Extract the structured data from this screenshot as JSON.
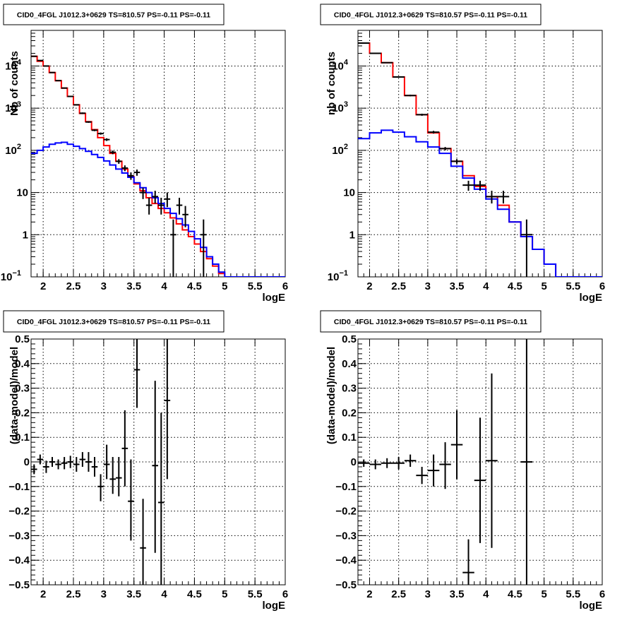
{
  "colors": {
    "total_model": "#ff0000",
    "source_model": "#0000ff",
    "data": "#000000"
  },
  "chart_data": [
    {
      "type": "line",
      "title": "CID0_4FGL J1012.3+0629 TS=810.57 PS=-0.11 PS=-0.11",
      "xlabel": "logE",
      "ylabel": "Nb of counts",
      "xlim": [
        1.8,
        6.0
      ],
      "ylim": [
        0.1,
        70000
      ],
      "yscale": "log",
      "grid": true,
      "x_ticks": [
        "2",
        "2.5",
        "3",
        "3.5",
        "4",
        "4.5",
        "5",
        "5.5",
        "6"
      ],
      "y_ticks": [
        {
          "v": 0.1,
          "base": "10",
          "exp": "−1"
        },
        {
          "v": 1,
          "label": "1"
        },
        {
          "v": 10,
          "label": "10"
        },
        {
          "v": 100,
          "base": "10",
          "exp": "2"
        },
        {
          "v": 1000,
          "base": "10",
          "exp": "3"
        },
        {
          "v": 10000,
          "base": "10",
          "exp": "4"
        }
      ],
      "bin_edges": [
        1.8,
        1.9,
        2.0,
        2.1,
        2.2,
        2.3,
        2.4,
        2.5,
        2.6,
        2.7,
        2.8,
        2.9,
        3.0,
        3.1,
        3.2,
        3.3,
        3.4,
        3.5,
        3.6,
        3.7,
        3.8,
        3.9,
        4.0,
        4.1,
        4.2,
        4.3,
        4.4,
        4.5,
        4.6,
        4.7,
        4.8,
        4.9,
        5.0,
        5.1,
        5.2,
        5.3,
        5.4,
        5.5,
        5.6,
        5.7,
        5.8,
        5.9,
        6.0
      ],
      "series": [
        {
          "name": "",
          "color": "#ff0000",
          "style": "step",
          "values": [
            17000,
            13000,
            10000,
            7000,
            4500,
            3000,
            1900,
            1200,
            750,
            480,
            310,
            200,
            130,
            85,
            55,
            36,
            24,
            16,
            11,
            7.5,
            5.5,
            4.2,
            3.3,
            2.5,
            1.8,
            1.3,
            0.9,
            0.6,
            0.4,
            0.27,
            0.18,
            0.12,
            0.1,
            0.1,
            0.1,
            0.1,
            0.1,
            0.1,
            0.1,
            0.1,
            0.1,
            0.1
          ]
        },
        {
          "name": "",
          "color": "#0000ff",
          "style": "step",
          "values": [
            85,
            100,
            120,
            140,
            150,
            155,
            140,
            125,
            110,
            95,
            80,
            68,
            56,
            45,
            36,
            29,
            23,
            17,
            13,
            10,
            7.5,
            5.5,
            4.2,
            3.2,
            2.4,
            1.7,
            1.2,
            0.8,
            0.5,
            0.3,
            0.2,
            0.13,
            0.1,
            0.1,
            0.1,
            0.1,
            0.1,
            0.1,
            0.1,
            0.1,
            0.1,
            0.1
          ]
        },
        {
          "name": "",
          "color": "#000000",
          "style": "errorbar",
          "points": [
            {
              "x": 1.85,
              "y": 17000,
              "lo": 16800,
              "hi": 17200
            },
            {
              "x": 1.95,
              "y": 13500,
              "lo": 13300,
              "hi": 13700
            },
            {
              "x": 2.05,
              "y": 10000,
              "lo": 9850,
              "hi": 10150
            },
            {
              "x": 2.15,
              "y": 7000,
              "lo": 6850,
              "hi": 7150
            },
            {
              "x": 2.25,
              "y": 4500,
              "lo": 4400,
              "hi": 4600
            },
            {
              "x": 2.35,
              "y": 3000,
              "lo": 2930,
              "hi": 3070
            },
            {
              "x": 2.45,
              "y": 1900,
              "lo": 1850,
              "hi": 1950
            },
            {
              "x": 2.55,
              "y": 1200,
              "lo": 1160,
              "hi": 1240
            },
            {
              "x": 2.65,
              "y": 760,
              "lo": 730,
              "hi": 790
            },
            {
              "x": 2.75,
              "y": 470,
              "lo": 450,
              "hi": 490
            },
            {
              "x": 2.85,
              "y": 300,
              "lo": 285,
              "hi": 315
            },
            {
              "x": 2.95,
              "y": 250,
              "lo": 235,
              "hi": 265
            },
            {
              "x": 3.05,
              "y": 180,
              "lo": 167,
              "hi": 193
            },
            {
              "x": 3.15,
              "y": 90,
              "lo": 81,
              "hi": 99
            },
            {
              "x": 3.25,
              "y": 55,
              "lo": 48,
              "hi": 62
            },
            {
              "x": 3.35,
              "y": 38,
              "lo": 32,
              "hi": 44
            },
            {
              "x": 3.45,
              "y": 25,
              "lo": 20,
              "hi": 30
            },
            {
              "x": 3.55,
              "y": 30,
              "lo": 25,
              "hi": 35
            },
            {
              "x": 3.65,
              "y": 10,
              "lo": 7,
              "hi": 13
            },
            {
              "x": 3.75,
              "y": 5,
              "lo": 3,
              "hi": 7.5
            },
            {
              "x": 3.85,
              "y": 8,
              "lo": 5.5,
              "hi": 11
            },
            {
              "x": 3.95,
              "y": 5,
              "lo": 3,
              "hi": 7.5
            },
            {
              "x": 4.05,
              "y": 7,
              "lo": 4.5,
              "hi": 10
            },
            {
              "x": 4.15,
              "y": 1,
              "lo": 0.1,
              "hi": 2.3
            },
            {
              "x": 4.25,
              "y": 5,
              "lo": 3,
              "hi": 7.5
            },
            {
              "x": 4.35,
              "y": 3,
              "lo": 1.5,
              "hi": 4.8
            },
            {
              "x": 4.65,
              "y": 1,
              "lo": 0.1,
              "hi": 2.3
            }
          ]
        }
      ]
    },
    {
      "type": "line",
      "title": "CID0_4FGL J1012.3+0629 TS=810.57 PS=-0.11 PS=-0.11",
      "xlabel": "logE",
      "ylabel": "nb of counts",
      "xlim": [
        1.8,
        6.0
      ],
      "ylim": [
        0.1,
        70000
      ],
      "yscale": "log",
      "grid": true,
      "x_ticks": [
        "2",
        "2.5",
        "3",
        "3.5",
        "4",
        "4.5",
        "5",
        "5.5",
        "6"
      ],
      "y_ticks": [
        {
          "v": 0.1,
          "base": "10",
          "exp": "−1"
        },
        {
          "v": 1,
          "label": "1"
        },
        {
          "v": 10,
          "label": "10"
        },
        {
          "v": 100,
          "base": "10",
          "exp": "2"
        },
        {
          "v": 1000,
          "base": "10",
          "exp": "3"
        },
        {
          "v": 10000,
          "base": "10",
          "exp": "4"
        }
      ],
      "bin_edges": [
        1.8,
        2.0,
        2.2,
        2.4,
        2.6,
        2.8,
        3.0,
        3.2,
        3.4,
        3.6,
        3.8,
        4.0,
        4.2,
        4.4,
        4.6,
        4.8,
        5.0,
        5.2,
        5.4,
        5.6,
        5.8,
        6.0
      ],
      "series": [
        {
          "name": "",
          "color": "#ff0000",
          "style": "step",
          "values": [
            35000,
            20000,
            12000,
            5500,
            2000,
            700,
            260,
            110,
            55,
            25,
            14,
            8,
            5,
            2,
            0.9,
            0.45,
            0.2,
            0.1,
            0.1,
            0.1,
            0.1
          ]
        },
        {
          "name": "",
          "color": "#0000ff",
          "style": "step",
          "values": [
            190,
            260,
            300,
            270,
            210,
            160,
            120,
            85,
            42,
            22,
            12,
            7,
            4,
            2,
            0.9,
            0.45,
            0.2,
            0.1,
            0.1,
            0.1,
            0.1
          ]
        },
        {
          "name": "",
          "color": "#000000",
          "style": "errorbar",
          "points": [
            {
              "x": 1.9,
              "y": 35000,
              "lo": 34600,
              "hi": 35400
            },
            {
              "x": 2.1,
              "y": 20000,
              "lo": 19700,
              "hi": 20300
            },
            {
              "x": 2.3,
              "y": 12000,
              "lo": 11800,
              "hi": 12200
            },
            {
              "x": 2.5,
              "y": 5500,
              "lo": 5350,
              "hi": 5650
            },
            {
              "x": 2.7,
              "y": 2000,
              "lo": 1910,
              "hi": 2090
            },
            {
              "x": 2.9,
              "y": 700,
              "lo": 660,
              "hi": 740
            },
            {
              "x": 3.1,
              "y": 270,
              "lo": 250,
              "hi": 290
            },
            {
              "x": 3.3,
              "y": 110,
              "lo": 100,
              "hi": 120
            },
            {
              "x": 3.5,
              "y": 55,
              "lo": 48,
              "hi": 62
            },
            {
              "x": 3.7,
              "y": 15,
              "lo": 11,
              "hi": 19
            },
            {
              "x": 3.9,
              "y": 15,
              "lo": 11,
              "hi": 19
            },
            {
              "x": 4.1,
              "y": 8,
              "lo": 5.5,
              "hi": 11
            },
            {
              "x": 4.3,
              "y": 8,
              "lo": 5.5,
              "hi": 11
            },
            {
              "x": 4.7,
              "y": 1,
              "lo": 0.1,
              "hi": 2.3
            }
          ]
        }
      ]
    },
    {
      "type": "scatter",
      "title": "CID0_4FGL J1012.3+0629 TS=810.57 PS=-0.11 PS=-0.11",
      "xlabel": "logE",
      "ylabel": "(data-model)/model",
      "xlim": [
        1.8,
        6.0
      ],
      "ylim": [
        -0.5,
        0.5
      ],
      "grid": true,
      "x_ticks": [
        "2",
        "2.5",
        "3",
        "3.5",
        "4",
        "4.5",
        "5",
        "5.5",
        "6"
      ],
      "y_ticks": [
        "−0.5",
        "−0.4",
        "−0.3",
        "−0.2",
        "−0.1",
        "0",
        "0.1",
        "0.2",
        "0.3",
        "0.4",
        "0.5"
      ],
      "series": [
        {
          "name": "",
          "color": "#000000",
          "style": "errorbar",
          "xerr": 0.05,
          "points": [
            {
              "x": 1.85,
              "y": -0.03,
              "lo": -0.05,
              "hi": -0.01
            },
            {
              "x": 1.95,
              "y": 0.01,
              "lo": -0.01,
              "hi": 0.03
            },
            {
              "x": 2.05,
              "y": -0.02,
              "lo": -0.045,
              "hi": 0.005
            },
            {
              "x": 2.15,
              "y": 0.0,
              "lo": -0.02,
              "hi": 0.02
            },
            {
              "x": 2.25,
              "y": -0.01,
              "lo": -0.03,
              "hi": 0.01
            },
            {
              "x": 2.35,
              "y": -0.005,
              "lo": -0.03,
              "hi": 0.02
            },
            {
              "x": 2.45,
              "y": 0.0,
              "lo": -0.025,
              "hi": 0.025
            },
            {
              "x": 2.55,
              "y": -0.01,
              "lo": -0.04,
              "hi": 0.02
            },
            {
              "x": 2.65,
              "y": 0.01,
              "lo": -0.02,
              "hi": 0.04
            },
            {
              "x": 2.75,
              "y": 0.0,
              "lo": -0.04,
              "hi": 0.04
            },
            {
              "x": 2.85,
              "y": -0.02,
              "lo": -0.06,
              "hi": 0.02
            },
            {
              "x": 2.95,
              "y": -0.1,
              "lo": -0.16,
              "hi": -0.05
            },
            {
              "x": 3.05,
              "y": -0.01,
              "lo": -0.07,
              "hi": 0.07
            },
            {
              "x": 3.15,
              "y": -0.07,
              "lo": -0.13,
              "hi": 0.02
            },
            {
              "x": 3.25,
              "y": -0.065,
              "lo": -0.14,
              "hi": 0.02
            },
            {
              "x": 3.35,
              "y": 0.055,
              "lo": -0.1,
              "hi": 0.21
            },
            {
              "x": 3.45,
              "y": -0.16,
              "lo": -0.32,
              "hi": 0.01
            },
            {
              "x": 3.55,
              "y": 0.375,
              "lo": 0.22,
              "hi": 0.55
            },
            {
              "x": 3.65,
              "y": -0.35,
              "lo": -0.55,
              "hi": -0.15
            },
            {
              "x": 3.85,
              "y": -0.015,
              "lo": -0.37,
              "hi": 0.33
            },
            {
              "x": 3.95,
              "y": -0.165,
              "lo": -0.55,
              "hi": 0.2
            },
            {
              "x": 4.05,
              "y": 0.25,
              "lo": -0.07,
              "hi": 0.55
            }
          ]
        }
      ]
    },
    {
      "type": "scatter",
      "title": "CID0_4FGL J1012.3+0629 TS=810.57 PS=-0.11 PS=-0.11",
      "xlabel": "logE",
      "ylabel": "(data-model)/model",
      "xlim": [
        1.8,
        6.0
      ],
      "ylim": [
        -0.5,
        0.5
      ],
      "grid": true,
      "x_ticks": [
        "2",
        "2.5",
        "3",
        "3.5",
        "4",
        "4.5",
        "5",
        "5.5",
        "6"
      ],
      "y_ticks": [
        "−0.5",
        "−0.4",
        "−0.3",
        "−0.2",
        "−0.1",
        "0",
        "0.1",
        "0.2",
        "0.3",
        "0.4",
        "0.5"
      ],
      "series": [
        {
          "name": "",
          "color": "#000000",
          "style": "errorbar",
          "xerr": 0.1,
          "points": [
            {
              "x": 1.9,
              "y": -0.005,
              "lo": -0.02,
              "hi": 0.01
            },
            {
              "x": 2.1,
              "y": -0.01,
              "lo": -0.03,
              "hi": 0.01
            },
            {
              "x": 2.3,
              "y": -0.005,
              "lo": -0.025,
              "hi": 0.015
            },
            {
              "x": 2.5,
              "y": -0.005,
              "lo": -0.03,
              "hi": 0.02
            },
            {
              "x": 2.7,
              "y": 0.005,
              "lo": -0.02,
              "hi": 0.03
            },
            {
              "x": 2.9,
              "y": -0.055,
              "lo": -0.09,
              "hi": -0.02
            },
            {
              "x": 3.1,
              "y": -0.035,
              "lo": -0.1,
              "hi": 0.03
            },
            {
              "x": 3.3,
              "y": -0.01,
              "lo": -0.11,
              "hi": 0.08
            },
            {
              "x": 3.5,
              "y": 0.07,
              "lo": -0.07,
              "hi": 0.21
            },
            {
              "x": 3.7,
              "y": -0.45,
              "lo": -0.55,
              "hi": -0.315
            },
            {
              "x": 3.9,
              "y": -0.075,
              "lo": -0.33,
              "hi": 0.18
            },
            {
              "x": 4.1,
              "y": 0.005,
              "lo": -0.35,
              "hi": 0.36
            },
            {
              "x": 4.7,
              "y": 0.0,
              "lo": -0.55,
              "hi": 0.55
            }
          ]
        }
      ]
    }
  ]
}
